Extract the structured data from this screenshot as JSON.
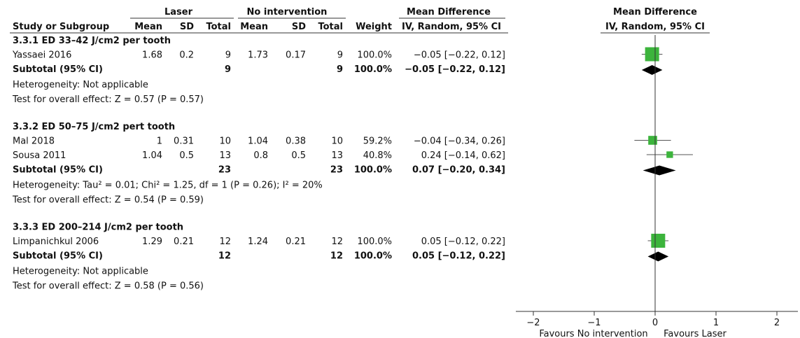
{
  "table": {
    "group_headers": [
      "Laser",
      "No intervention",
      "Mean Difference"
    ],
    "columns": [
      "Study or Subgroup",
      "Mean",
      "SD",
      "Total",
      "Mean",
      "SD",
      "Total",
      "Weight",
      "IV, Random, 95% CI"
    ],
    "groups": [
      {
        "title": "3.3.1 ED 33–42 J/cm2 per tooth",
        "rows": [
          [
            "Yassaei 2016",
            "1.68",
            "0.2",
            "9",
            "1.73",
            "0.17",
            "9",
            "100.0%",
            "−0.05 [−0.22, 0.12]"
          ]
        ],
        "subtotal": {
          "label": "Subtotal (95% CI)",
          "total_laser": "9",
          "total_control": "9",
          "weight": "100.0%",
          "ci": "−0.05 [−0.22, 0.12]"
        },
        "heterogeneity": "Heterogeneity: Not applicable",
        "overall_test": "Test for overall effect: Z = 0.57 (P = 0.57)"
      },
      {
        "title": "3.3.2 ED 50–75 J/cm2 pert tooth",
        "rows": [
          [
            "Mal 2018",
            "1",
            "0.31",
            "10",
            "1.04",
            "0.38",
            "10",
            "59.2%",
            "−0.04 [−0.34, 0.26]"
          ],
          [
            "Sousa 2011",
            "1.04",
            "0.5",
            "13",
            "0.8",
            "0.5",
            "13",
            "40.8%",
            "0.24 [−0.14, 0.62]"
          ]
        ],
        "subtotal": {
          "label": "Subtotal (95% CI)",
          "total_laser": "23",
          "total_control": "23",
          "weight": "100.0%",
          "ci": "0.07 [−0.20, 0.34]"
        },
        "heterogeneity": "Heterogeneity: Tau² = 0.01; Chi² = 1.25, df = 1 (P = 0.26); I² = 20%",
        "overall_test": "Test for overall effect: Z = 0.54 (P = 0.59)"
      },
      {
        "title": "3.3.3 ED 200–214 J/cm2 per tooth",
        "rows": [
          [
            "Limpanichkul 2006",
            "1.29",
            "0.21",
            "12",
            "1.24",
            "0.21",
            "12",
            "100.0%",
            "0.05 [−0.12, 0.22]"
          ]
        ],
        "subtotal": {
          "label": "Subtotal (95% CI)",
          "total_laser": "12",
          "total_control": "12",
          "weight": "100.0%",
          "ci": "0.05 [−0.12, 0.22]"
        },
        "heterogeneity": "Heterogeneity: Not applicable",
        "overall_test": "Test for overall effect: Z = 0.58 (P = 0.56)"
      }
    ]
  },
  "chart_data": {
    "type": "forest",
    "title": "Mean Difference",
    "subtitle": "IV, Random, 95% CI",
    "xlim": [
      -2,
      2
    ],
    "xticks": [
      {
        "value": -2,
        "label": "−2"
      },
      {
        "value": -1,
        "label": "−1"
      },
      0,
      1,
      2
    ],
    "x_labels": [
      "Favours No intervention",
      "Favours Laser"
    ],
    "study_color": "#3cb43c",
    "summary_color": "#000000",
    "groups": [
      {
        "studies": [
          {
            "estimate": -0.05,
            "lower": -0.22,
            "upper": 0.12,
            "weight": 100.0
          }
        ],
        "subtotal": {
          "estimate": -0.05,
          "lower": -0.22,
          "upper": 0.12
        }
      },
      {
        "studies": [
          {
            "estimate": -0.04,
            "lower": -0.34,
            "upper": 0.26,
            "weight": 59.2
          },
          {
            "estimate": 0.24,
            "lower": -0.14,
            "upper": 0.62,
            "weight": 40.8
          }
        ],
        "subtotal": {
          "estimate": 0.07,
          "lower": -0.2,
          "upper": 0.34
        }
      },
      {
        "studies": [
          {
            "estimate": 0.05,
            "lower": -0.12,
            "upper": 0.22,
            "weight": 100.0
          }
        ],
        "subtotal": {
          "estimate": 0.05,
          "lower": -0.12,
          "upper": 0.22
        }
      }
    ]
  }
}
